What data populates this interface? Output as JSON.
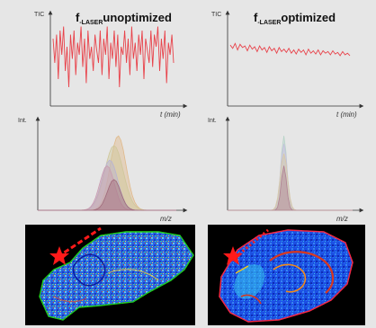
{
  "panels": {
    "left_title": {
      "prefix": "f",
      "subscript": "-LASER",
      "suffix": "unoptimized"
    },
    "right_title": {
      "prefix": "f",
      "subscript": "-LASER",
      "suffix": "optimized"
    }
  },
  "chart_data": [
    {
      "type": "line",
      "panel": "top-left",
      "title": "",
      "ylabel": "TIC",
      "xlabel": "t (min)",
      "grid": false,
      "color": "#e8424a",
      "series": [
        {
          "values": [
            0.8,
            0.5,
            0.85,
            0.3,
            0.9,
            0.6,
            0.95,
            0.4,
            0.7,
            0.2,
            0.85,
            0.55,
            0.9,
            0.35,
            0.75,
            0.6,
            0.95,
            0.45,
            0.8,
            0.25,
            0.9,
            0.55,
            0.7,
            0.4,
            0.85,
            0.65,
            0.5,
            0.9,
            0.35,
            0.8,
            0.6,
            0.95,
            0.3,
            0.75,
            0.55,
            0.9,
            0.45,
            0.85,
            0.2,
            0.7,
            0.6,
            0.9,
            0.5,
            0.8,
            0.35,
            0.95,
            0.55,
            0.75,
            0.4,
            0.85,
            0.6,
            0.9,
            0.3,
            0.8,
            0.65,
            0.5,
            0.9,
            0.45,
            0.85,
            0.7,
            0.95,
            0.4,
            0.8,
            0.55,
            0.9,
            0.25,
            0.75,
            0.6,
            0.85,
            0.5
          ]
        }
      ]
    },
    {
      "type": "line",
      "panel": "top-right",
      "title": "",
      "ylabel": "TIC",
      "xlabel": "t (min)",
      "grid": false,
      "color": "#e8424a",
      "series": [
        {
          "values": [
            0.72,
            0.68,
            0.74,
            0.66,
            0.73,
            0.69,
            0.71,
            0.65,
            0.72,
            0.67,
            0.7,
            0.64,
            0.71,
            0.66,
            0.69,
            0.63,
            0.7,
            0.65,
            0.68,
            0.62,
            0.69,
            0.64,
            0.67,
            0.63,
            0.68,
            0.62,
            0.66,
            0.61,
            0.67,
            0.63,
            0.66,
            0.6,
            0.67,
            0.62,
            0.65,
            0.61,
            0.66,
            0.6,
            0.65,
            0.62,
            0.64,
            0.6,
            0.65,
            0.61,
            0.63,
            0.59,
            0.64,
            0.6,
            0.62,
            0.59
          ]
        }
      ]
    },
    {
      "type": "area",
      "panel": "mid-left",
      "title": "",
      "ylabel": "Int.",
      "xlabel": "m/z",
      "grid": false,
      "peaks": [
        {
          "color": "#e0b98a",
          "center": 0.58,
          "width": 0.12,
          "height": 0.92
        },
        {
          "color": "#cfc79a",
          "center": 0.55,
          "width": 0.14,
          "height": 0.8
        },
        {
          "color": "#b8b3d3",
          "center": 0.52,
          "width": 0.12,
          "height": 0.62
        },
        {
          "color": "#c99db0",
          "center": 0.5,
          "width": 0.11,
          "height": 0.55
        },
        {
          "color": "#a06a7a",
          "center": 0.55,
          "width": 0.1,
          "height": 0.38
        }
      ]
    },
    {
      "type": "area",
      "panel": "mid-right",
      "title": "",
      "ylabel": "Int.",
      "xlabel": "m/z",
      "grid": false,
      "peaks": [
        {
          "color": "#b7d3c8",
          "center": 0.45,
          "width": 0.05,
          "height": 0.92
        },
        {
          "color": "#c5c0df",
          "center": 0.45,
          "width": 0.055,
          "height": 0.82
        },
        {
          "color": "#d7c7a7",
          "center": 0.45,
          "width": 0.06,
          "height": 0.7
        },
        {
          "color": "#b08090",
          "center": 0.45,
          "width": 0.045,
          "height": 0.55
        }
      ]
    }
  ],
  "images": {
    "left": {
      "outline_color": "#22dd22",
      "laser_color": "#ff1a1a"
    },
    "right": {
      "outline_color": "#ff2a4a",
      "laser_color": "#ff1a1a"
    }
  }
}
